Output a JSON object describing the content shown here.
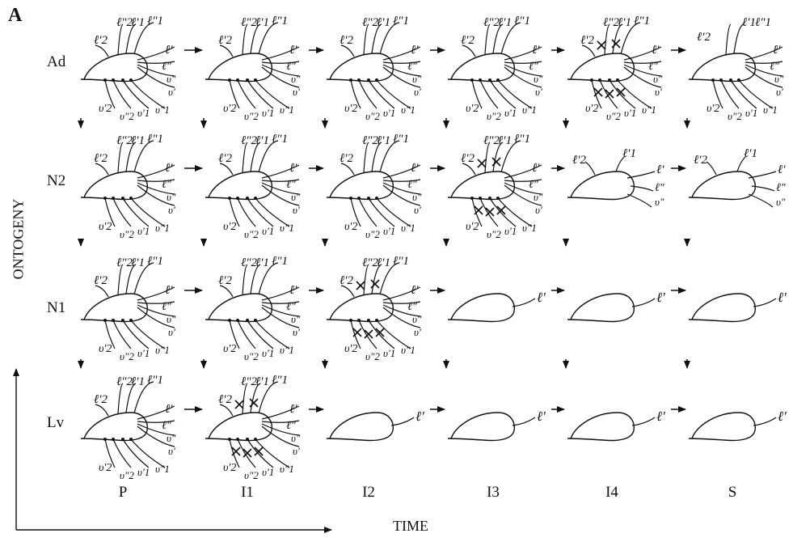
{
  "figure": {
    "panel_letter": "A",
    "y_axis_title": "ONTOGENY",
    "x_axis_title": "TIME",
    "rows": [
      {
        "key": "Ad",
        "label": "Ad"
      },
      {
        "key": "N2",
        "label": "N2"
      },
      {
        "key": "N1",
        "label": "N1"
      },
      {
        "key": "Lv",
        "label": "Lv"
      }
    ],
    "columns": [
      {
        "key": "P",
        "label": "P"
      },
      {
        "key": "I1",
        "label": "I1"
      },
      {
        "key": "I2",
        "label": "I2"
      },
      {
        "key": "I3",
        "label": "I3"
      },
      {
        "key": "I4",
        "label": "I4"
      },
      {
        "key": "S",
        "label": "S"
      }
    ],
    "setae": {
      "top": [
        "ℓ'2",
        "ℓ\"2",
        "ℓ'1",
        "ℓ\"1"
      ],
      "right": [
        "ℓ'",
        "ℓ\"",
        "υ\"",
        "υ'"
      ],
      "bottom": [
        "υ'2",
        "υ\"2",
        "υ'1",
        "υ\"1"
      ],
      "reduced": [
        "ℓ'2",
        "ℓ'1",
        "ℓ'",
        "ℓ\"",
        "υ\""
      ],
      "minimal": "ℓ'"
    },
    "cell_states": [
      [
        "full",
        "full",
        "full",
        "full",
        "full-lost",
        "partial"
      ],
      [
        "full",
        "full",
        "full",
        "full-lost",
        "reduced",
        "reduced"
      ],
      [
        "full",
        "full",
        "full-lost",
        "minimal",
        "minimal",
        "minimal"
      ],
      [
        "full",
        "full-lost",
        "minimal",
        "minimal",
        "minimal",
        "minimal"
      ]
    ]
  }
}
